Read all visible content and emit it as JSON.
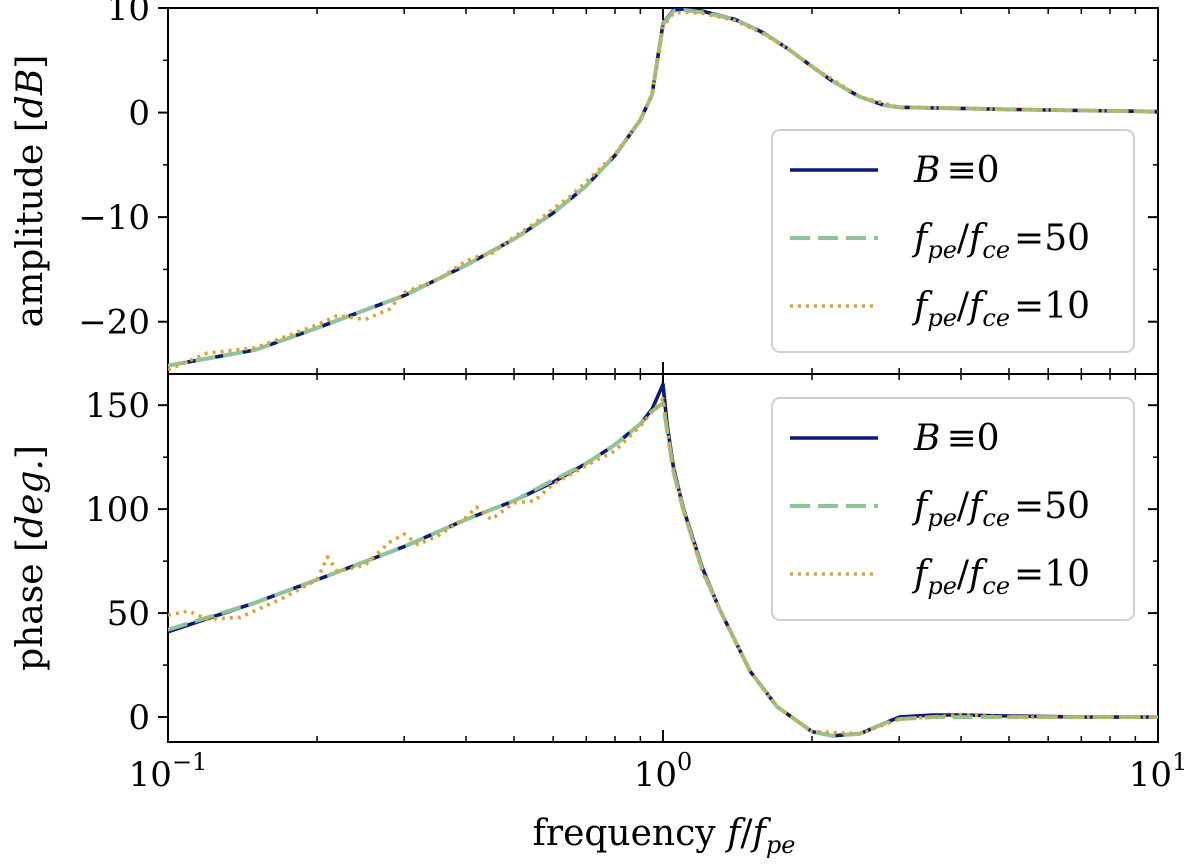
{
  "chart_data": [
    {
      "type": "line",
      "panel": "top",
      "ylabel_main": "amplitude ",
      "ylabel_unit": "dB",
      "ylim": [
        -25,
        10
      ],
      "yticks": [
        10,
        0,
        -10,
        -20
      ],
      "ytick_labels": [
        "10",
        "0",
        "−10",
        "−20"
      ],
      "xscale": "log",
      "xlim": [
        0.1,
        10
      ],
      "grid": false,
      "legend_position": "right",
      "series": [
        {
          "name": "B ≡ 0",
          "color": "#0a1a7a",
          "style": "solid",
          "x": [
            0.1,
            0.15,
            0.2,
            0.3,
            0.4,
            0.5,
            0.6,
            0.7,
            0.8,
            0.9,
            0.95,
            1.0,
            1.05,
            1.1,
            1.2,
            1.4,
            1.6,
            1.8,
            2.0,
            2.2,
            2.5,
            2.8,
            3.0,
            4.0,
            5.0,
            7.0,
            10.0
          ],
          "y": [
            -24.2,
            -22.7,
            -20.6,
            -17.5,
            -14.6,
            -12.1,
            -9.6,
            -7.0,
            -4.1,
            -0.7,
            1.7,
            8.5,
            9.8,
            9.9,
            9.7,
            8.9,
            7.6,
            6.0,
            4.4,
            3.0,
            1.5,
            0.7,
            0.5,
            0.4,
            0.3,
            0.2,
            0.1
          ]
        },
        {
          "name": "f_pe/f_ce = 50",
          "color": "#8fc49b",
          "style": "dashed",
          "x": [
            0.1,
            0.15,
            0.2,
            0.3,
            0.4,
            0.5,
            0.6,
            0.7,
            0.8,
            0.9,
            0.95,
            1.0,
            1.05,
            1.1,
            1.2,
            1.4,
            1.6,
            1.8,
            2.0,
            2.2,
            2.5,
            2.8,
            3.0,
            4.0,
            5.0,
            7.0,
            10.0
          ],
          "y": [
            -24.2,
            -22.7,
            -20.6,
            -17.5,
            -14.6,
            -12.1,
            -9.6,
            -7.0,
            -4.1,
            -0.7,
            1.7,
            8.4,
            9.7,
            9.8,
            9.6,
            8.9,
            7.6,
            6.0,
            4.4,
            3.0,
            1.5,
            0.7,
            0.5,
            0.4,
            0.3,
            0.2,
            0.1
          ]
        },
        {
          "name": "f_pe/f_ce = 10",
          "color": "#e0a32b",
          "style": "dotted",
          "x": [
            0.1,
            0.12,
            0.15,
            0.2,
            0.22,
            0.25,
            0.28,
            0.3,
            0.35,
            0.4,
            0.42,
            0.45,
            0.5,
            0.55,
            0.6,
            0.65,
            0.7,
            0.8,
            0.9,
            0.95,
            1.0,
            1.05,
            1.1,
            1.2,
            1.4,
            1.6,
            1.8,
            2.0,
            2.5,
            3.0,
            4.0,
            5.0,
            7.0,
            10.0
          ],
          "y": [
            -24.6,
            -23.0,
            -22.5,
            -20.3,
            -19.4,
            -19.8,
            -18.8,
            -17.2,
            -16.0,
            -14.2,
            -13.8,
            -13.5,
            -11.9,
            -10.6,
            -9.2,
            -8.0,
            -6.6,
            -4.0,
            -0.7,
            1.7,
            8.2,
            9.5,
            9.6,
            9.5,
            8.8,
            7.5,
            6.0,
            4.4,
            1.5,
            0.5,
            0.4,
            0.3,
            0.2,
            0.1
          ]
        }
      ]
    },
    {
      "type": "line",
      "panel": "bottom",
      "ylabel_main": "phase ",
      "ylabel_unit": "deg.",
      "ylim": [
        -12,
        165
      ],
      "yticks": [
        150,
        100,
        50,
        0
      ],
      "ytick_labels": [
        "150",
        "100",
        "50",
        "0"
      ],
      "xscale": "log",
      "xlim": [
        0.1,
        10
      ],
      "xticks": [
        0.1,
        1,
        10
      ],
      "grid": false,
      "legend_position": "top-right",
      "series": [
        {
          "name": "B ≡ 0",
          "color": "#0a1a7a",
          "style": "solid",
          "x": [
            0.1,
            0.15,
            0.2,
            0.3,
            0.4,
            0.5,
            0.6,
            0.7,
            0.8,
            0.9,
            0.95,
            1.0,
            1.02,
            1.05,
            1.1,
            1.2,
            1.3,
            1.5,
            1.7,
            2.0,
            2.2,
            2.5,
            2.8,
            3.0,
            3.5,
            4.0,
            5.0,
            7.0,
            10.0
          ],
          "y": [
            41,
            55,
            66,
            82,
            95,
            104,
            113,
            122,
            131,
            141,
            148,
            160,
            140,
            120,
            100,
            72,
            52,
            22,
            5,
            -7,
            -9,
            -8,
            -3,
            0,
            1,
            1,
            0.5,
            0,
            0
          ]
        },
        {
          "name": "f_pe/f_ce = 50",
          "color": "#8fc49b",
          "style": "dashed",
          "x": [
            0.1,
            0.15,
            0.2,
            0.3,
            0.4,
            0.5,
            0.6,
            0.7,
            0.8,
            0.9,
            0.95,
            1.0,
            1.02,
            1.05,
            1.1,
            1.2,
            1.3,
            1.5,
            1.7,
            2.0,
            2.2,
            2.5,
            2.8,
            3.0,
            3.5,
            4.0,
            5.0,
            7.0,
            10.0
          ],
          "y": [
            42,
            55,
            66,
            82,
            95,
            104,
            114,
            122,
            131,
            141,
            147,
            151,
            137,
            118,
            99,
            71,
            52,
            22,
            5,
            -7,
            -9,
            -8,
            -3,
            -1,
            0,
            0,
            0,
            0,
            0
          ]
        },
        {
          "name": "f_pe/f_ce = 10",
          "color": "#e0a32b",
          "style": "dotted",
          "x": [
            0.1,
            0.11,
            0.12,
            0.14,
            0.17,
            0.2,
            0.21,
            0.22,
            0.25,
            0.28,
            0.3,
            0.32,
            0.35,
            0.4,
            0.42,
            0.45,
            0.5,
            0.55,
            0.6,
            0.7,
            0.8,
            0.9,
            0.95,
            1.0,
            1.02,
            1.05,
            1.1,
            1.2,
            1.3,
            1.5,
            1.7,
            2.0,
            2.5,
            3.0,
            4.0,
            5.0,
            7.0,
            10.0
          ],
          "y": [
            49,
            51,
            47,
            48,
            57,
            66,
            77,
            70,
            73,
            84,
            88,
            83,
            87,
            96,
            101,
            95,
            103,
            104,
            112,
            121,
            128,
            140,
            147,
            153,
            138,
            119,
            100,
            70,
            52,
            22,
            5,
            -7,
            -8,
            -1,
            1,
            0,
            0,
            0
          ]
        }
      ]
    }
  ],
  "xlabel_main": "frequency ",
  "xtick_labels": [
    {
      "base": "10",
      "exp": "−1"
    },
    {
      "base": "10",
      "exp": "0"
    },
    {
      "base": "10",
      "exp": "1"
    }
  ],
  "legend": {
    "entries": [
      {
        "lhs": "B",
        "op": "≡",
        "rhs": "0",
        "frac": false
      },
      {
        "lhs_num": "f",
        "lhs_num_sub": "pe",
        "lhs_den": "f",
        "lhs_den_sub": "ce",
        "op": "=",
        "rhs": "50",
        "frac": true
      },
      {
        "lhs_num": "f",
        "lhs_num_sub": "pe",
        "lhs_den": "f",
        "lhs_den_sub": "ce",
        "op": "=",
        "rhs": "10",
        "frac": true
      }
    ]
  }
}
